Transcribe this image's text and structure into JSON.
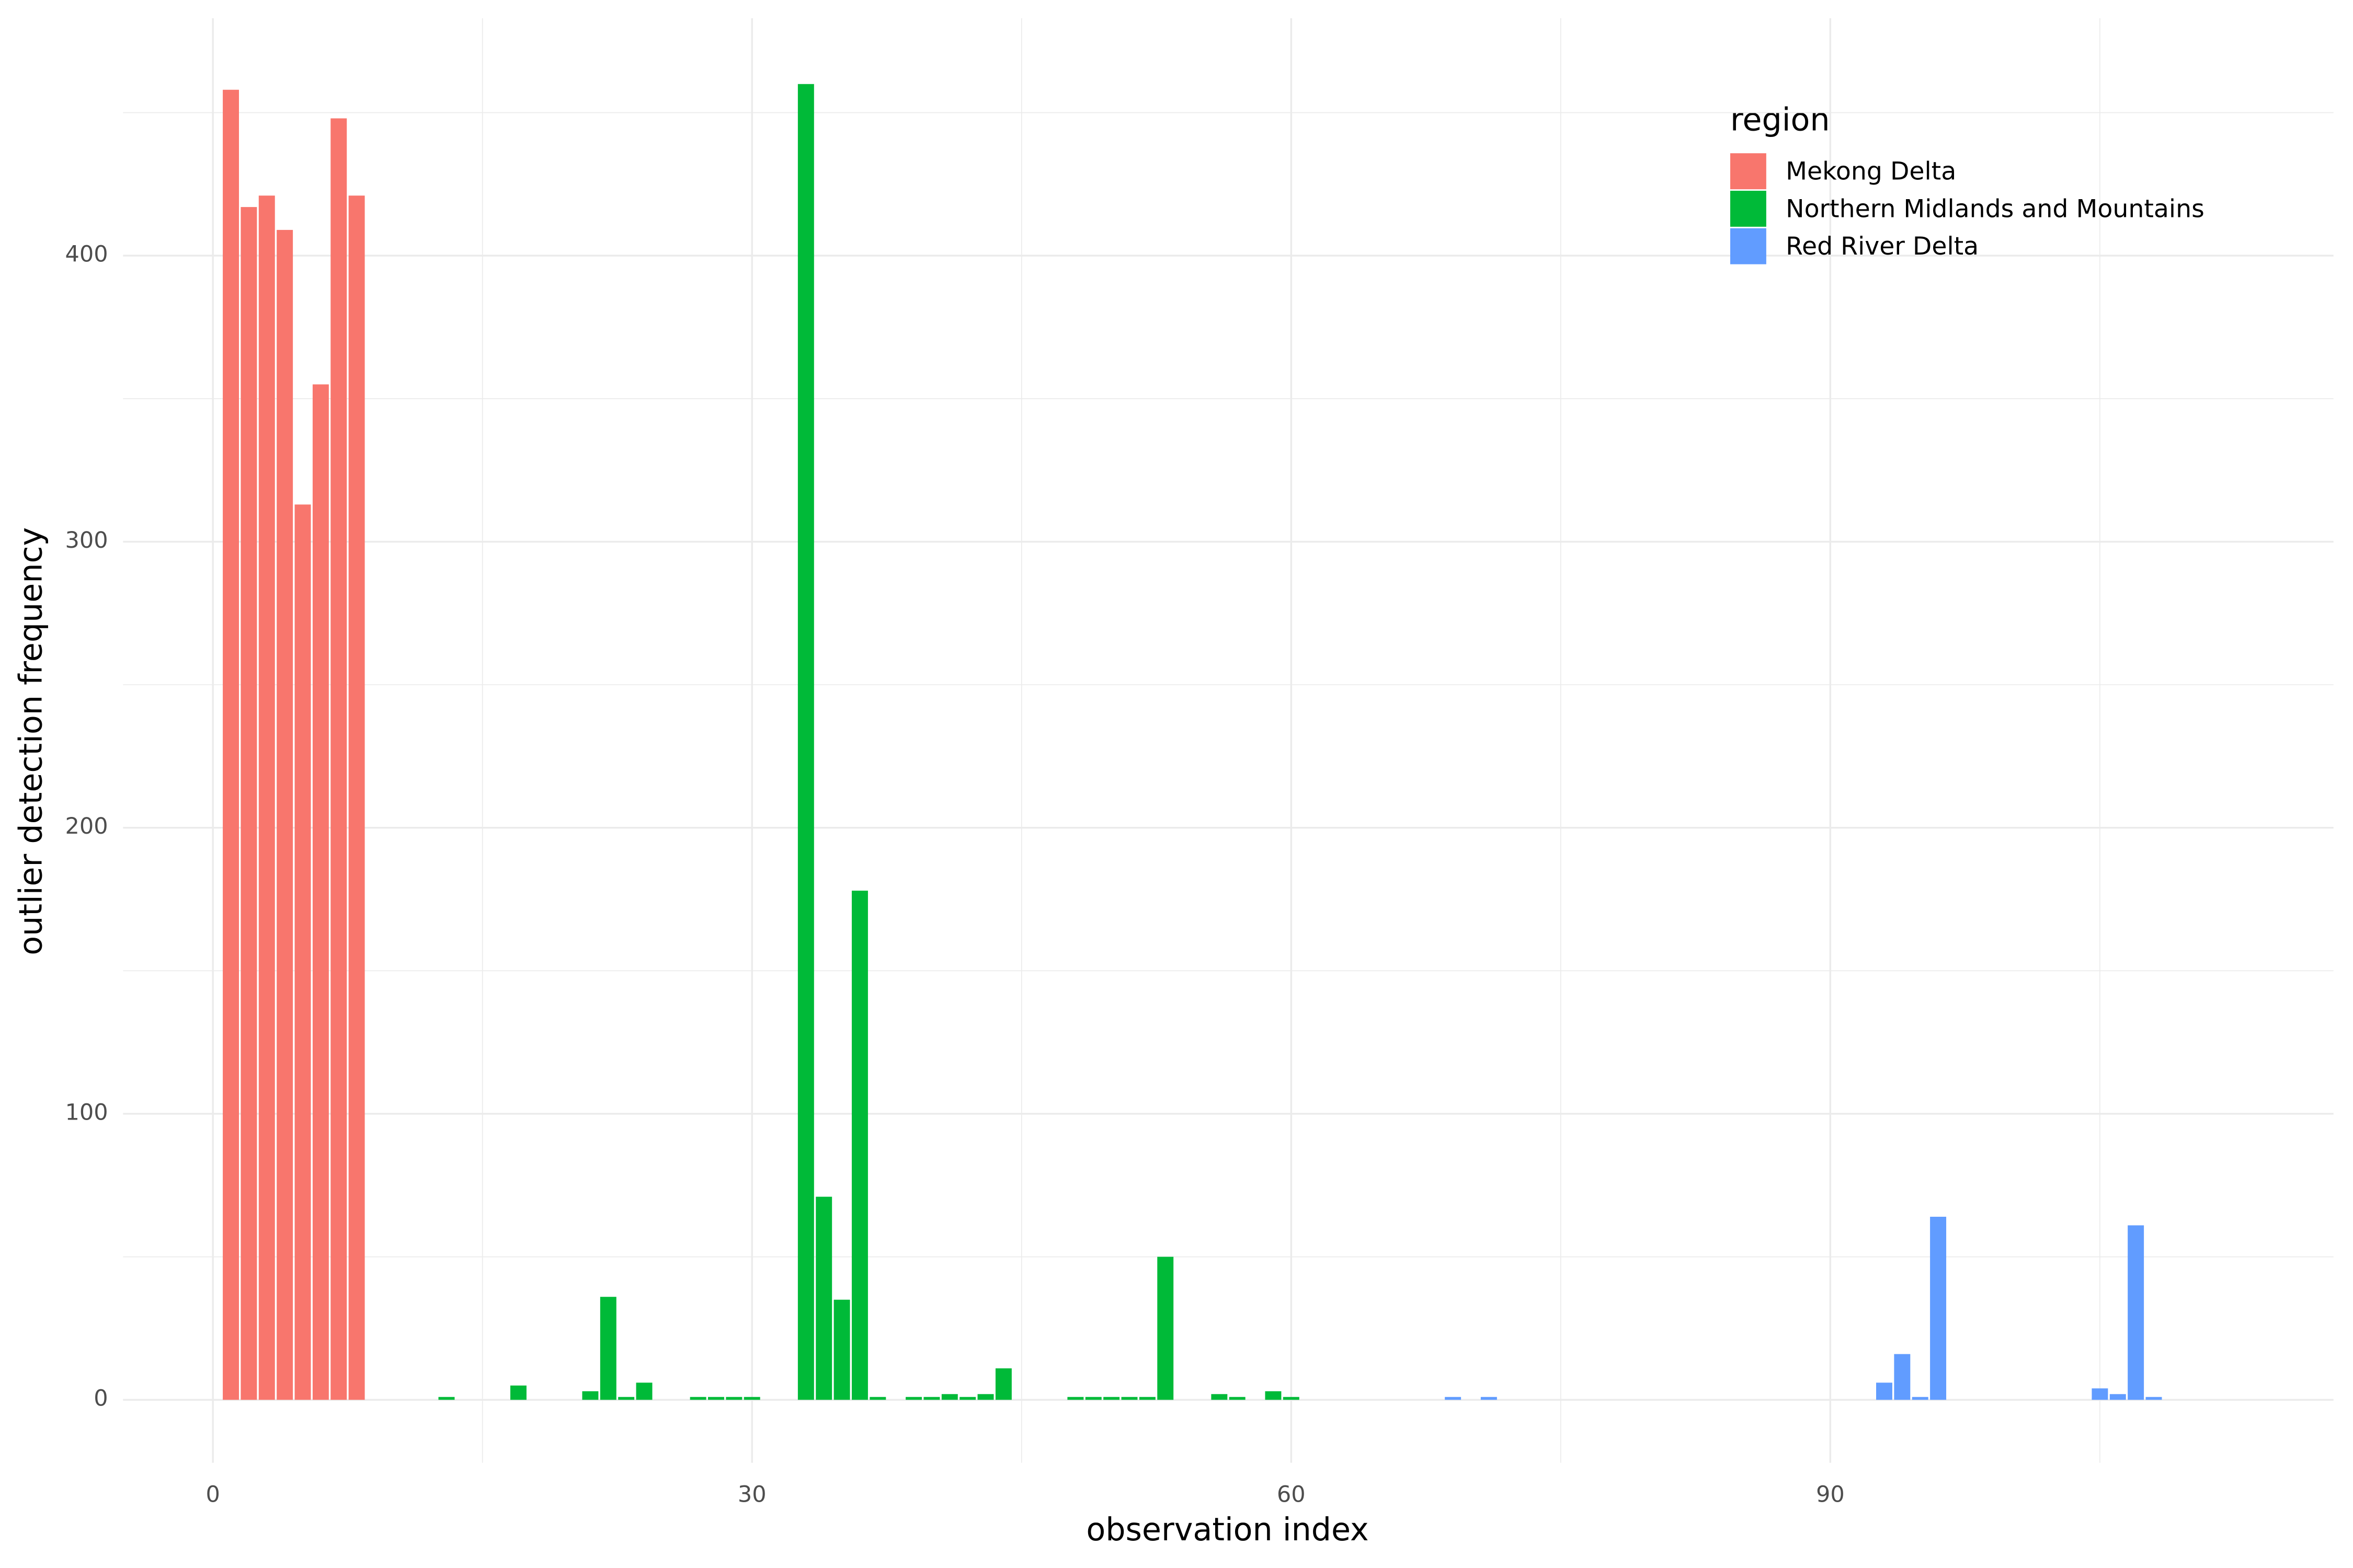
{
  "chart_data": {
    "type": "bar",
    "x_label": "observation index",
    "y_label": "outlier detection frequency",
    "legend_title": "region",
    "legend_position": "top-right",
    "grid": true,
    "xlim": [
      -5,
      118
    ],
    "xticks": [
      0,
      30,
      60,
      90
    ],
    "x_minor_ticks": [
      15,
      45,
      75,
      105
    ],
    "ylim": [
      -22,
      483
    ],
    "yticks": [
      0,
      100,
      200,
      300,
      400
    ],
    "y_minor_ticks": [
      50,
      150,
      250,
      350,
      450
    ],
    "series": [
      {
        "name": "Mekong Delta",
        "color": "#F8766D",
        "x": [
          1,
          2,
          3,
          4,
          5,
          6,
          7,
          8
        ],
        "values": [
          458,
          417,
          421,
          409,
          313,
          355,
          448,
          421
        ]
      },
      {
        "name": "Northern Midlands and Mountains",
        "color": "#00BA38",
        "x": [
          13,
          17,
          21,
          22,
          23,
          24,
          27,
          28,
          29,
          30,
          33,
          34,
          35,
          36,
          37,
          39,
          40,
          41,
          42,
          43,
          44,
          48,
          49,
          50,
          51,
          52,
          53,
          56,
          57,
          59,
          60
        ],
        "values": [
          1,
          5,
          3,
          36,
          1,
          6,
          1,
          1,
          1,
          1,
          460,
          71,
          35,
          178,
          1,
          1,
          1,
          2,
          1,
          2,
          11,
          1,
          1,
          1,
          1,
          1,
          50,
          2,
          1,
          3,
          1
        ]
      },
      {
        "name": "Red River Delta",
        "color": "#619CFF",
        "x": [
          69,
          71,
          93,
          94,
          95,
          96,
          105,
          106,
          107,
          108
        ],
        "values": [
          1,
          1,
          6,
          16,
          1,
          64,
          4,
          2,
          61,
          1
        ]
      }
    ]
  }
}
